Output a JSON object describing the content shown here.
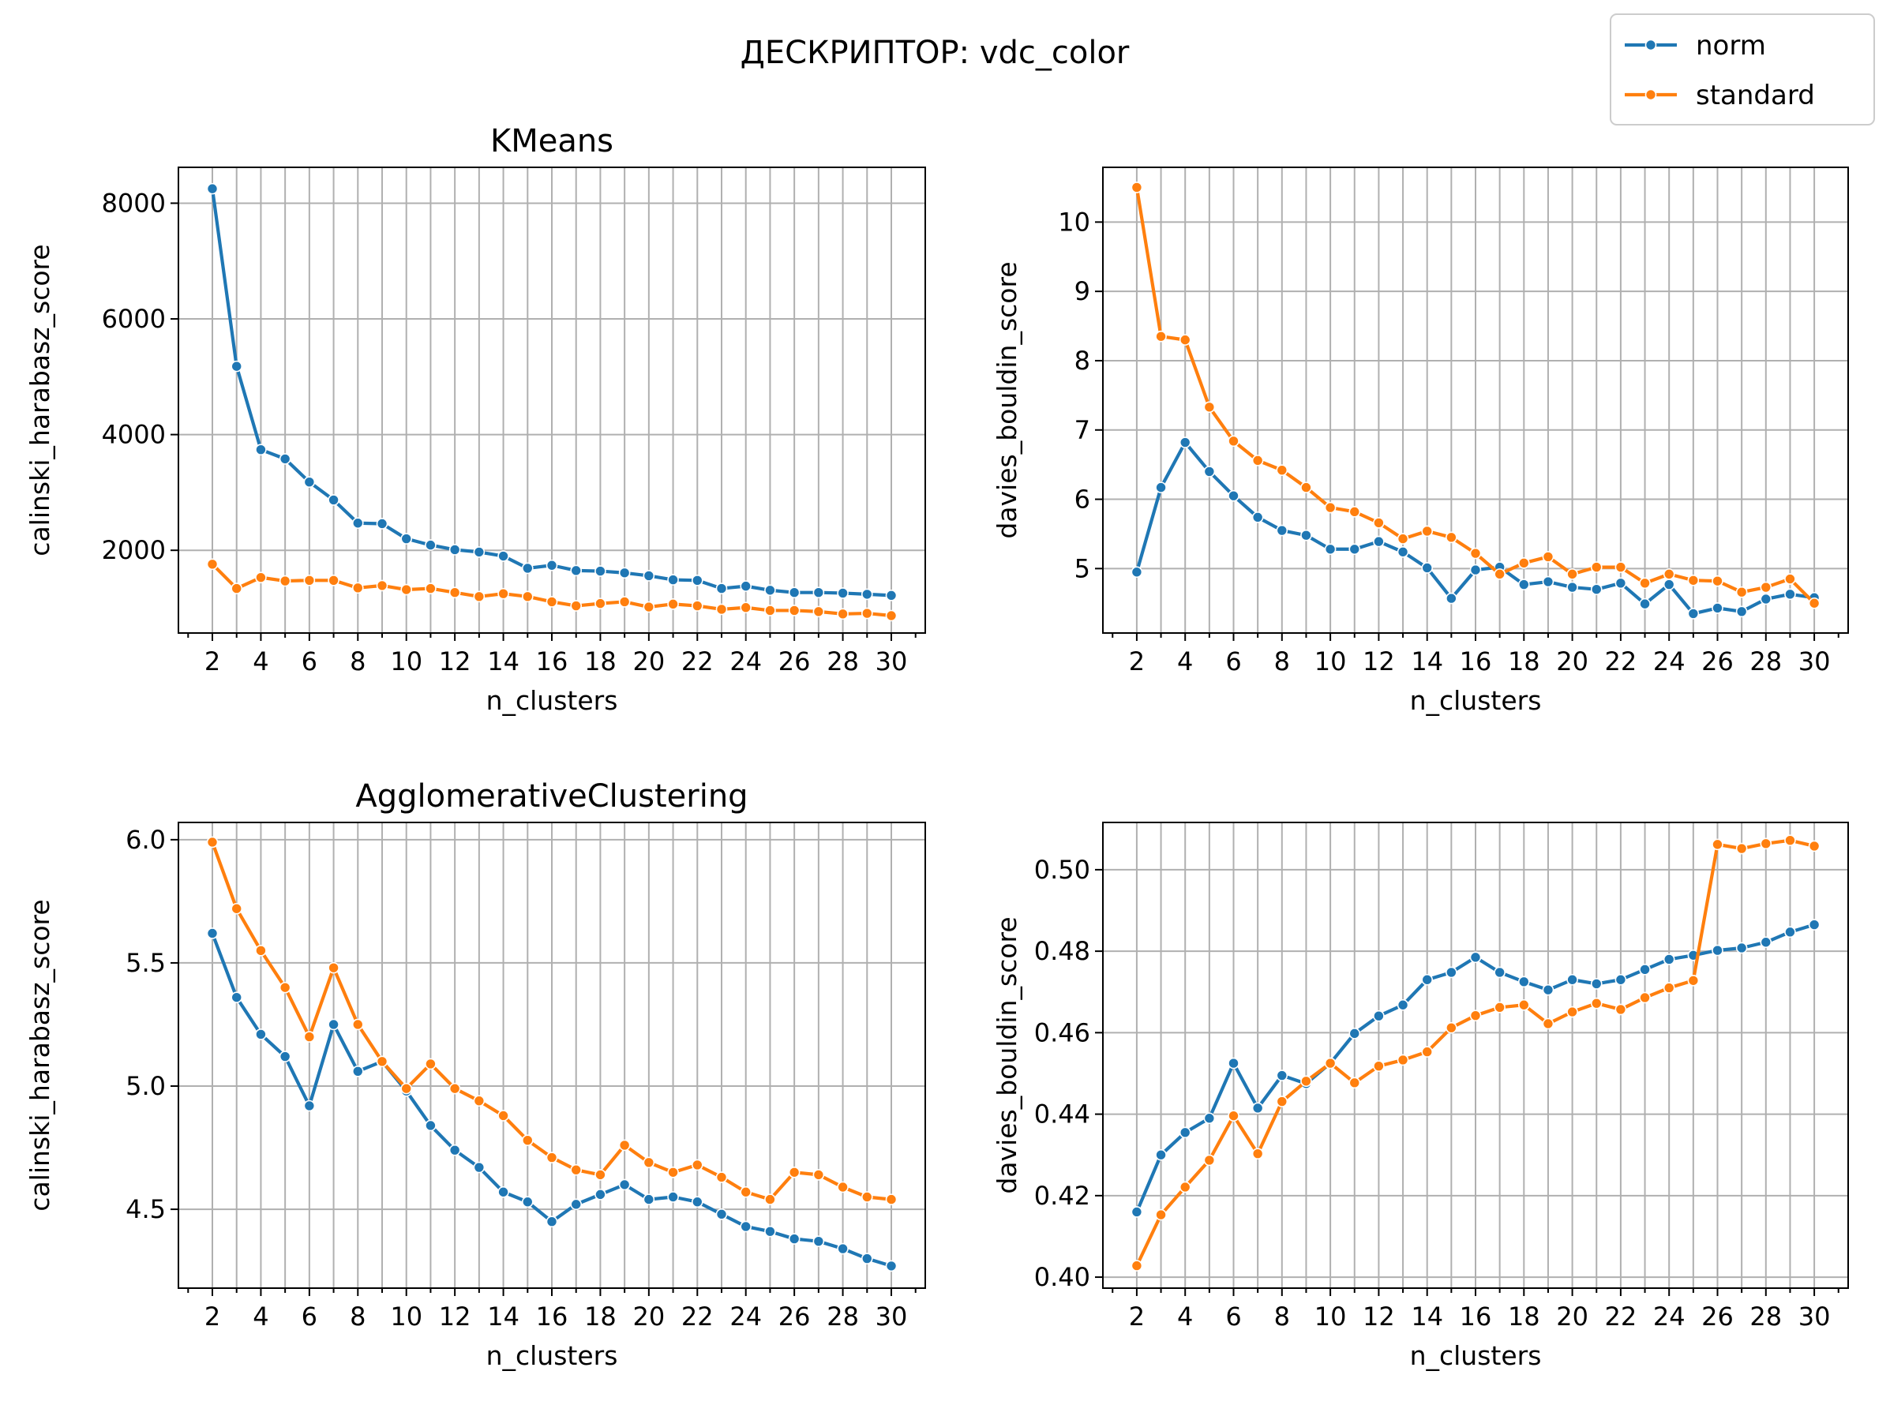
{
  "figure": {
    "suptitle": "ДЕСКРИПТОР: vdc_color"
  },
  "legend": {
    "placement": "upper-right",
    "entries": [
      {
        "label": "norm",
        "color": "#1f77b4"
      },
      {
        "label": "standard",
        "color": "#ff7f0e"
      }
    ]
  },
  "colors": {
    "norm": "#1f77b4",
    "standard": "#ff7f0e",
    "grid": "#b0b0b0"
  },
  "chart_data": [
    {
      "type": "line",
      "title": "KMeans",
      "xlabel": "n_clusters",
      "ylabel": "calinski_harabasz_score",
      "grid": true,
      "xlim": [
        0.6,
        31.4
      ],
      "ylim": [
        570,
        8620
      ],
      "xticks": [
        2,
        4,
        6,
        8,
        10,
        12,
        14,
        16,
        18,
        20,
        22,
        24,
        26,
        28,
        30
      ],
      "yticks": [
        2000,
        4000,
        6000,
        8000
      ],
      "ytick_labels": [
        "2000",
        "4000",
        "6000",
        "8000"
      ],
      "x": [
        2,
        3,
        4,
        5,
        6,
        7,
        8,
        9,
        10,
        11,
        12,
        13,
        14,
        15,
        16,
        17,
        18,
        19,
        20,
        21,
        22,
        23,
        24,
        25,
        26,
        27,
        28,
        29,
        30
      ],
      "series": [
        {
          "name": "norm",
          "values": [
            8250,
            5180,
            3740,
            3580,
            3180,
            2870,
            2470,
            2460,
            2200,
            2090,
            2010,
            1970,
            1900,
            1690,
            1740,
            1650,
            1640,
            1610,
            1560,
            1490,
            1480,
            1340,
            1380,
            1310,
            1270,
            1270,
            1260,
            1240,
            1220
          ]
        },
        {
          "name": "standard",
          "values": [
            1760,
            1340,
            1530,
            1470,
            1480,
            1480,
            1350,
            1390,
            1320,
            1340,
            1270,
            1200,
            1250,
            1200,
            1110,
            1040,
            1080,
            1110,
            1020,
            1070,
            1040,
            980,
            1010,
            960,
            960,
            940,
            900,
            910,
            870
          ]
        }
      ]
    },
    {
      "type": "line",
      "title": "",
      "xlabel": "n_clusters",
      "ylabel": "davies_bouldin_score",
      "grid": true,
      "xlim": [
        0.6,
        31.4
      ],
      "ylim": [
        4.07,
        10.79
      ],
      "xticks": [
        2,
        4,
        6,
        8,
        10,
        12,
        14,
        16,
        18,
        20,
        22,
        24,
        26,
        28,
        30
      ],
      "yticks": [
        5,
        6,
        7,
        8,
        9,
        10
      ],
      "ytick_labels": [
        "5",
        "6",
        "7",
        "8",
        "9",
        "10"
      ],
      "x": [
        2,
        3,
        4,
        5,
        6,
        7,
        8,
        9,
        10,
        11,
        12,
        13,
        14,
        15,
        16,
        17,
        18,
        19,
        20,
        21,
        22,
        23,
        24,
        25,
        26,
        27,
        28,
        29,
        30
      ],
      "series": [
        {
          "name": "norm",
          "values": [
            4.95,
            6.17,
            6.82,
            6.4,
            6.05,
            5.74,
            5.55,
            5.48,
            5.28,
            5.28,
            5.39,
            5.24,
            5.01,
            4.57,
            4.98,
            5.02,
            4.77,
            4.81,
            4.73,
            4.7,
            4.79,
            4.49,
            4.77,
            4.35,
            4.43,
            4.38,
            4.56,
            4.63,
            4.58
          ]
        },
        {
          "name": "standard",
          "values": [
            10.5,
            8.35,
            8.3,
            7.33,
            6.84,
            6.56,
            6.42,
            6.17,
            5.88,
            5.82,
            5.66,
            5.43,
            5.54,
            5.45,
            5.22,
            4.92,
            5.08,
            5.17,
            4.92,
            5.02,
            5.02,
            4.79,
            4.92,
            4.83,
            4.82,
            4.66,
            4.73,
            4.85,
            4.5
          ]
        }
      ]
    },
    {
      "type": "line",
      "title": "AgglomerativeClustering",
      "xlabel": "n_clusters",
      "ylabel": "calinski_harabasz_score",
      "grid": true,
      "xlim": [
        0.6,
        31.4
      ],
      "ylim": [
        4.18,
        6.07
      ],
      "xticks": [
        2,
        4,
        6,
        8,
        10,
        12,
        14,
        16,
        18,
        20,
        22,
        24,
        26,
        28,
        30
      ],
      "yticks": [
        4.5,
        5.0,
        5.5,
        6.0
      ],
      "ytick_labels": [
        "4.5",
        "5.0",
        "5.5",
        "6.0"
      ],
      "x": [
        2,
        3,
        4,
        5,
        6,
        7,
        8,
        9,
        10,
        11,
        12,
        13,
        14,
        15,
        16,
        17,
        18,
        19,
        20,
        21,
        22,
        23,
        24,
        25,
        26,
        27,
        28,
        29,
        30
      ],
      "series": [
        {
          "name": "norm",
          "values": [
            5.62,
            5.36,
            5.21,
            5.12,
            4.92,
            5.25,
            5.06,
            5.1,
            4.98,
            4.84,
            4.74,
            4.67,
            4.57,
            4.53,
            4.45,
            4.52,
            4.56,
            4.6,
            4.54,
            4.55,
            4.53,
            4.48,
            4.43,
            4.41,
            4.38,
            4.37,
            4.34,
            4.3,
            4.27
          ]
        },
        {
          "name": "standard",
          "values": [
            5.99,
            5.72,
            5.55,
            5.4,
            5.2,
            5.48,
            5.25,
            5.1,
            4.99,
            5.09,
            4.99,
            4.94,
            4.88,
            4.78,
            4.71,
            4.66,
            4.64,
            4.76,
            4.69,
            4.65,
            4.68,
            4.63,
            4.57,
            4.54,
            4.65,
            4.64,
            4.59,
            4.55,
            4.54
          ]
        }
      ]
    },
    {
      "type": "line",
      "title": "",
      "xlabel": "n_clusters",
      "ylabel": "davies_bouldin_score",
      "grid": true,
      "xlim": [
        0.6,
        31.4
      ],
      "ylim": [
        0.3973,
        0.5116
      ],
      "xticks": [
        2,
        4,
        6,
        8,
        10,
        12,
        14,
        16,
        18,
        20,
        22,
        24,
        26,
        28,
        30
      ],
      "yticks": [
        0.4,
        0.42,
        0.44,
        0.46,
        0.48,
        0.5
      ],
      "ytick_labels": [
        "0.40",
        "0.42",
        "0.44",
        "0.46",
        "0.48",
        "0.50"
      ],
      "x": [
        2,
        3,
        4,
        5,
        6,
        7,
        8,
        9,
        10,
        11,
        12,
        13,
        14,
        15,
        16,
        17,
        18,
        19,
        20,
        21,
        22,
        23,
        24,
        25,
        26,
        27,
        28,
        29,
        30
      ],
      "series": [
        {
          "name": "norm",
          "values": [
            0.416,
            0.43,
            0.4355,
            0.439,
            0.4525,
            0.4415,
            0.4495,
            0.4475,
            0.4525,
            0.4598,
            0.4641,
            0.4668,
            0.473,
            0.4748,
            0.4785,
            0.4748,
            0.4725,
            0.4705,
            0.473,
            0.472,
            0.473,
            0.4755,
            0.478,
            0.479,
            0.4802,
            0.4808,
            0.4822,
            0.4847,
            0.4865
          ]
        },
        {
          "name": "standard",
          "values": [
            0.4028,
            0.4153,
            0.4221,
            0.4287,
            0.4396,
            0.4303,
            0.4431,
            0.4481,
            0.4525,
            0.4477,
            0.4518,
            0.4533,
            0.4553,
            0.4612,
            0.4642,
            0.4662,
            0.4668,
            0.4622,
            0.4651,
            0.4672,
            0.4657,
            0.4686,
            0.471,
            0.4728,
            0.5062,
            0.5052,
            0.5064,
            0.5072,
            0.5058
          ]
        }
      ]
    }
  ]
}
